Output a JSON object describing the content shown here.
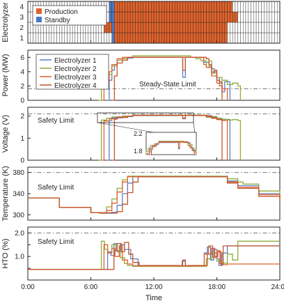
{
  "x_ticks": [
    "0:00",
    "6:00",
    "12:00",
    "18:00",
    "24:00"
  ],
  "x_label": "Time",
  "colors": {
    "production": "#e0622a",
    "standby": "#4a78c4",
    "e1": "#5b7fc5",
    "e2": "#8cae3e",
    "e3": "#e0622a",
    "e4": "#c4542b",
    "limit": "#777777"
  },
  "chart_data": [
    {
      "type": "heatmap",
      "ylabel": "Electrolyzer",
      "yticks": [
        "1",
        "2",
        "3",
        "4"
      ],
      "legend": [
        "Production",
        "Standby"
      ],
      "cell_hours": 0.25,
      "rows": [
        {
          "electrolyzer": "1",
          "standby": [
            [
              8.0,
              8.25
            ]
          ],
          "production": [
            [
              8.25,
              19.0
            ]
          ]
        },
        {
          "electrolyzer": "2",
          "standby": [
            [
              8.0,
              8.25
            ]
          ],
          "production": [
            [
              7.25,
              8.0
            ],
            [
              8.25,
              19.0
            ]
          ]
        },
        {
          "electrolyzer": "3",
          "standby": [
            [
              7.75,
              8.25
            ]
          ],
          "production": [
            [
              8.25,
              20.0
            ]
          ]
        },
        {
          "electrolyzer": "4",
          "standby": [
            [
              7.75,
              8.25
            ]
          ],
          "production": [
            [
              8.25,
              19.5
            ]
          ]
        }
      ]
    },
    {
      "type": "line",
      "ylabel": "Power (MW)",
      "yticks": [
        0,
        2,
        4,
        6
      ],
      "ylim": [
        0,
        7
      ],
      "annotation": "Steady-State Limit",
      "limit": 1.6,
      "series": [
        {
          "name": "Electrolyzer 1",
          "key": "e1",
          "x": [
            7.5,
            7.75,
            8.0,
            8.25,
            8.5,
            9.0,
            9.5,
            10.0,
            10.5,
            14.5,
            14.75,
            15.0,
            16.5,
            16.75,
            17.25,
            17.5,
            17.75,
            18.0,
            18.25,
            18.5,
            18.75,
            19.0,
            19.25
          ],
          "y": [
            0,
            2.8,
            4.2,
            5.0,
            5.6,
            5.8,
            5.9,
            6.0,
            6.0,
            6.0,
            3.2,
            6.0,
            6.0,
            5.3,
            4.8,
            4.4,
            4.0,
            3.2,
            2.4,
            1.2,
            2.6,
            2.6,
            0
          ]
        },
        {
          "name": "Electrolyzer 2",
          "key": "e2",
          "x": [
            6.75,
            7.0,
            7.5,
            8.0,
            8.5,
            9.0,
            9.5,
            10.0,
            15.0,
            15.5,
            16.0,
            16.5,
            17.0,
            17.25,
            17.5,
            17.75,
            18.0,
            18.5,
            19.0,
            19.5,
            20.0,
            20.25
          ],
          "y": [
            0,
            2.0,
            3.6,
            4.8,
            5.6,
            5.8,
            6.0,
            6.2,
            6.2,
            6.0,
            5.8,
            5.5,
            4.6,
            5.5,
            4.0,
            3.8,
            3.2,
            2.8,
            2.2,
            2.4,
            2.0,
            0
          ]
        },
        {
          "name": "Electrolyzer 3",
          "key": "e3",
          "x": [
            7.0,
            7.25,
            7.5,
            7.75,
            8.0,
            8.5,
            9.0,
            9.5,
            10.0,
            16.5,
            16.75,
            17.0,
            17.5,
            18.0,
            18.25,
            18.5,
            18.75,
            19.0
          ],
          "y": [
            0,
            1.6,
            2.6,
            4.0,
            5.0,
            5.8,
            6.0,
            6.0,
            6.0,
            6.0,
            5.0,
            4.6,
            3.4,
            2.4,
            2.0,
            1.6,
            1.6,
            0
          ]
        },
        {
          "name": "Electrolyzer 4",
          "key": "e4",
          "x": [
            8.0,
            8.25,
            8.5,
            9.0,
            9.5,
            10.0,
            14.5,
            14.75,
            15.0,
            16.75,
            17.0,
            17.25,
            17.5,
            17.75,
            18.0,
            18.25,
            18.5
          ],
          "y": [
            0,
            3.4,
            5.2,
            5.6,
            6.0,
            6.0,
            6.0,
            4.2,
            6.0,
            6.0,
            5.8,
            5.0,
            3.8,
            4.2,
            2.8,
            2.6,
            0
          ]
        }
      ]
    },
    {
      "type": "line",
      "ylabel": "Voltage (V)",
      "yticks": [
        0,
        1,
        2
      ],
      "ylim": [
        0,
        2.4
      ],
      "annotation": "Safety Limit",
      "limit": 2.1,
      "inset_ticks": [
        "2.2",
        "1.8"
      ],
      "series": [
        {
          "name": "Electrolyzer 1",
          "key": "e1",
          "x": [
            7.5,
            7.75,
            8.0,
            9.0,
            10.0,
            14.5,
            14.75,
            15.0,
            17.0,
            17.5,
            18.0,
            18.5,
            18.75,
            19.0,
            19.25
          ],
          "y": [
            0,
            1.8,
            1.92,
            1.98,
            2.02,
            2.03,
            1.88,
            2.03,
            2.02,
            1.95,
            1.88,
            1.82,
            1.86,
            1.84,
            0
          ]
        },
        {
          "name": "Electrolyzer 2",
          "key": "e2",
          "x": [
            6.75,
            7.0,
            7.5,
            8.0,
            9.0,
            10.0,
            15.0,
            16.0,
            17.0,
            17.5,
            18.0,
            18.5,
            19.0,
            19.5,
            20.0,
            20.25
          ],
          "y": [
            0,
            1.82,
            1.9,
            1.96,
            2.0,
            2.05,
            2.05,
            2.02,
            1.95,
            1.98,
            1.9,
            1.86,
            1.82,
            1.84,
            1.8,
            0
          ]
        },
        {
          "name": "Electrolyzer 3",
          "key": "e3",
          "x": [
            7.0,
            7.25,
            7.75,
            8.5,
            9.5,
            10.0,
            16.5,
            17.0,
            17.5,
            18.0,
            18.5,
            19.0
          ],
          "y": [
            0,
            1.78,
            1.88,
            1.96,
            2.0,
            2.03,
            2.03,
            1.96,
            1.9,
            1.84,
            1.8,
            0
          ]
        },
        {
          "name": "Electrolyzer 4",
          "key": "e4",
          "x": [
            8.0,
            8.25,
            8.5,
            9.5,
            10.0,
            14.5,
            14.75,
            15.0,
            17.0,
            17.5,
            18.0,
            18.25,
            18.5
          ],
          "y": [
            0,
            1.86,
            1.94,
            2.0,
            2.04,
            2.04,
            1.9,
            2.04,
            2.0,
            1.92,
            1.86,
            1.84,
            0
          ]
        }
      ]
    },
    {
      "type": "line",
      "ylabel": "Temperature (K)",
      "yticks": [
        300,
        340,
        380
      ],
      "ylim": [
        290,
        390
      ],
      "annotation": "Safety Limit",
      "limit": 380,
      "series": [
        {
          "name": "Electrolyzer 1",
          "key": "e1",
          "x": [
            0,
            3.0,
            6.0,
            7.5,
            8.0,
            8.5,
            9.0,
            9.5,
            10.0,
            18.0,
            19.0,
            20.0,
            22.0,
            24.0
          ],
          "y": [
            332,
            314,
            304,
            303,
            305,
            318,
            340,
            360,
            372,
            372,
            364,
            355,
            340,
            330
          ]
        },
        {
          "name": "Electrolyzer 2",
          "key": "e2",
          "x": [
            0,
            3.0,
            6.0,
            6.75,
            7.5,
            8.0,
            8.5,
            9.0,
            9.5,
            18.0,
            19.0,
            20.0,
            20.5,
            22.0,
            24.0
          ],
          "y": [
            332,
            314,
            304,
            303,
            315,
            330,
            350,
            366,
            373,
            373,
            368,
            362,
            358,
            345,
            333
          ]
        },
        {
          "name": "Electrolyzer 3",
          "key": "e3",
          "x": [
            0,
            3.0,
            6.0,
            7.0,
            7.5,
            8.0,
            8.5,
            9.0,
            9.5,
            18.0,
            19.0,
            20.0,
            22.0,
            24.0
          ],
          "y": [
            332,
            314,
            304,
            303,
            308,
            322,
            343,
            362,
            372,
            372,
            362,
            352,
            338,
            328
          ]
        },
        {
          "name": "Electrolyzer 4",
          "key": "e4",
          "x": [
            0,
            3.0,
            6.0,
            8.0,
            8.5,
            9.0,
            9.5,
            10.0,
            10.5,
            18.0,
            19.0,
            20.0,
            22.0,
            24.0
          ],
          "y": [
            332,
            314,
            304,
            303,
            306,
            320,
            342,
            362,
            372,
            372,
            360,
            350,
            335,
            326
          ]
        }
      ]
    },
    {
      "type": "line",
      "ylabel": "HTO (%)",
      "yticks": [
        0.5,
        1.0,
        1.5,
        2.0
      ],
      "yticklabels": [
        "",
        "1.0",
        "",
        "2.0"
      ],
      "ylim": [
        0,
        2.25
      ],
      "annotation": "Safety Limit",
      "limit": 2.0,
      "series": [
        {
          "name": "Electrolyzer 1",
          "key": "e1",
          "x": [
            0,
            7.5,
            7.6,
            7.9,
            8.2,
            8.5,
            8.8,
            9.2,
            9.8,
            10.5,
            14.5,
            14.7,
            15.0,
            16.5,
            16.8,
            17.1,
            17.4,
            17.7,
            18.0,
            18.2,
            18.5,
            19.0,
            24.0
          ],
          "y": [
            0.45,
            0.45,
            1.2,
            1.05,
            1.55,
            1.2,
            1.5,
            1.3,
            0.9,
            0.62,
            0.62,
            0.8,
            0.62,
            0.62,
            1.15,
            1.4,
            0.85,
            1.3,
            0.9,
            0.62,
            1.15,
            1.45,
            1.45
          ]
        },
        {
          "name": "Electrolyzer 2",
          "key": "e2",
          "x": [
            0,
            6.75,
            7.0,
            7.3,
            7.6,
            8.0,
            8.4,
            8.8,
            9.2,
            9.5,
            10.0,
            15.0,
            16.5,
            17.0,
            17.5,
            18.0,
            18.5,
            19.0,
            19.5,
            20.0,
            24.0
          ],
          "y": [
            0.45,
            0.45,
            1.65,
            1.3,
            1.15,
            1.5,
            1.25,
            0.95,
            0.7,
            0.62,
            0.58,
            0.58,
            0.58,
            0.9,
            1.15,
            0.8,
            0.72,
            1.1,
            0.85,
            1.65,
            1.65
          ]
        },
        {
          "name": "Electrolyzer 3",
          "key": "e3",
          "x": [
            0,
            7.0,
            7.25,
            7.6,
            8.0,
            8.3,
            8.7,
            9.0,
            9.5,
            10.0,
            16.5,
            16.8,
            17.2,
            17.6,
            18.0,
            18.3,
            18.6,
            19.0,
            24.0
          ],
          "y": [
            0.45,
            0.45,
            1.5,
            1.15,
            1.35,
            1.0,
            1.45,
            0.85,
            0.68,
            0.6,
            0.6,
            1.1,
            1.45,
            0.95,
            1.25,
            0.7,
            0.65,
            0.68,
            0.68
          ]
        },
        {
          "name": "Electrolyzer 4",
          "key": "e4",
          "x": [
            0,
            8.0,
            8.2,
            8.5,
            8.9,
            9.2,
            9.6,
            10.0,
            10.6,
            14.5,
            14.75,
            15.0,
            16.75,
            17.1,
            17.5,
            17.8,
            18.1,
            18.4,
            18.6,
            24.0
          ],
          "y": [
            0.45,
            0.45,
            1.25,
            1.55,
            1.2,
            1.6,
            1.1,
            0.75,
            0.62,
            0.62,
            0.85,
            0.62,
            0.62,
            1.1,
            1.35,
            1.0,
            1.2,
            0.65,
            1.45,
            1.45
          ]
        }
      ]
    }
  ]
}
